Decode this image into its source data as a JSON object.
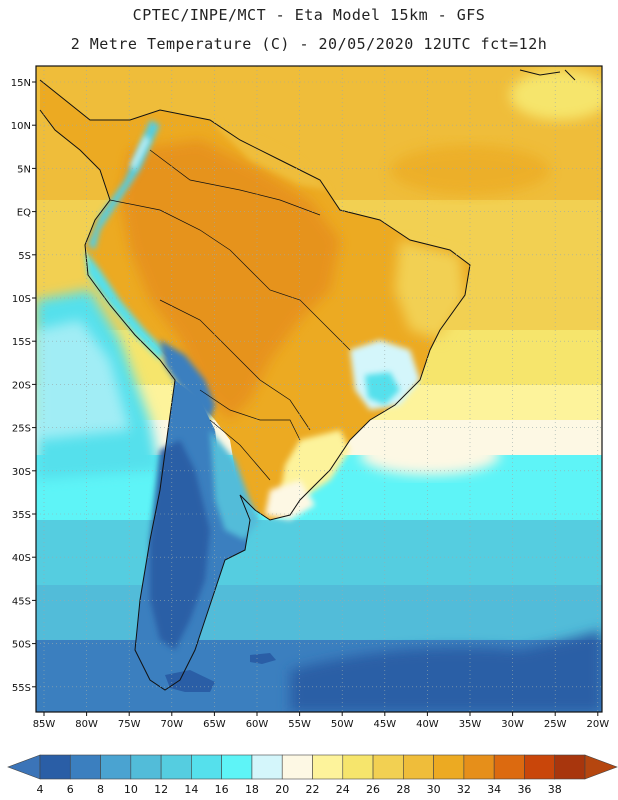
{
  "header": {
    "line1": "CPTEC/INPE/MCT -  Eta Model 15km - GFS",
    "line2": "2 Metre Temperature (C) - 20/05/2020 12UTC fct=12h"
  },
  "map": {
    "lat_labels": [
      "15N",
      "10N",
      "5N",
      "EQ",
      "5S",
      "10S",
      "15S",
      "20S",
      "25S",
      "30S",
      "35S",
      "40S",
      "45S",
      "50S",
      "55S"
    ],
    "lon_labels": [
      "85W",
      "80W",
      "75W",
      "70W",
      "65W",
      "60W",
      "55W",
      "50W",
      "45W",
      "40W",
      "35W",
      "30W",
      "25W",
      "20W"
    ]
  },
  "colorbar": {
    "levels": [
      "4",
      "6",
      "8",
      "10",
      "12",
      "14",
      "16",
      "18",
      "20",
      "22",
      "24",
      "26",
      "28",
      "30",
      "32",
      "34",
      "36",
      "38"
    ],
    "colors": [
      "#2a5ea6",
      "#3b7fbf",
      "#4aa3d1",
      "#52bcd9",
      "#55cde0",
      "#55e0ec",
      "#5ef4f7",
      "#d4f6fb",
      "#fdf8e4",
      "#fdf39b",
      "#f6e56c",
      "#f2d052",
      "#efbd3a",
      "#ecaa22",
      "#e68f1a",
      "#dc6a10",
      "#c9460a",
      "#a8360d"
    ],
    "under_color": "#3b74b8",
    "over_color": "#b5460f"
  }
}
